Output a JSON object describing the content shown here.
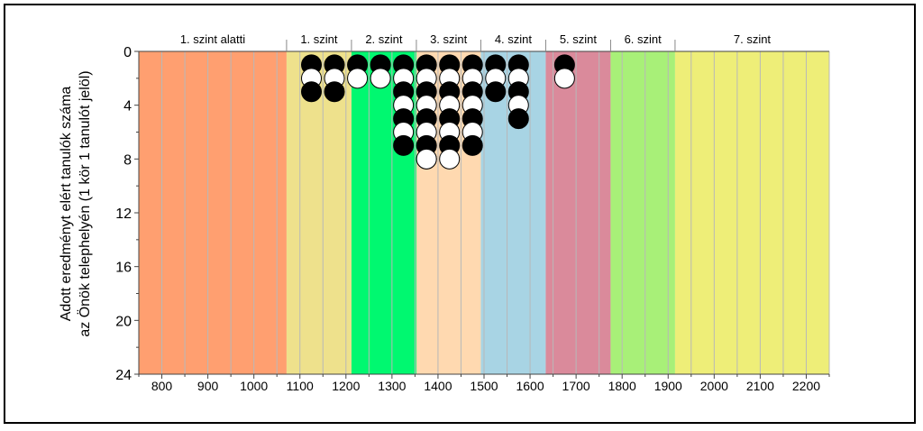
{
  "chart_data": {
    "type": "scatter",
    "ylabel": "Adott eredményt elért tanulók száma",
    "ylabel2": "az Önök telephelyén (1 kör 1 tanulót jelöl)",
    "x_ticks": [
      800,
      900,
      1000,
      1100,
      1200,
      1300,
      1400,
      1500,
      1600,
      1700,
      1800,
      1900,
      2000,
      2100,
      2200
    ],
    "y_ticks": [
      0,
      4,
      8,
      12,
      16,
      20,
      24
    ],
    "xlim": [
      750,
      2250
    ],
    "ylim": [
      0,
      24
    ],
    "y_inverted": true,
    "grid": true,
    "levels": [
      {
        "label": "1. szint alatti",
        "from": 750,
        "to": 1071,
        "color": "#FF9F70"
      },
      {
        "label": "1. szint",
        "from": 1071,
        "to": 1212,
        "color": "#EEE18C"
      },
      {
        "label": "2. szint",
        "from": 1212,
        "to": 1353,
        "color": "#00F870"
      },
      {
        "label": "3. szint",
        "from": 1353,
        "to": 1493,
        "color": "#FFD9B0"
      },
      {
        "label": "4. szint",
        "from": 1493,
        "to": 1634,
        "color": "#A8D4E4"
      },
      {
        "label": "5. szint",
        "from": 1634,
        "to": 1775,
        "color": "#DA8A9B"
      },
      {
        "label": "6. szint",
        "from": 1775,
        "to": 1915,
        "color": "#A8F078"
      },
      {
        "label": "7. szint",
        "from": 1915,
        "to": 2250,
        "color": "#EEEE78"
      }
    ],
    "series": [
      {
        "name": "",
        "color": "#000000",
        "x": [
          1125,
          1125,
          1175,
          1175,
          1225,
          1275,
          1325,
          1325,
          1325,
          1325,
          1375,
          1375,
          1375,
          1375,
          1375,
          1425,
          1425,
          1425,
          1425,
          1475,
          1475,
          1475,
          1475,
          1525,
          1525,
          1575,
          1575,
          1575,
          1675
        ],
        "y": [
          1,
          3,
          1,
          3,
          1,
          1,
          1,
          3,
          5,
          7,
          1,
          3,
          5,
          7,
          8,
          1,
          3,
          5,
          7,
          1,
          3,
          5,
          7,
          1,
          3,
          1,
          3,
          5,
          1
        ]
      },
      {
        "name": "",
        "color": "#FFFFFF",
        "x": [
          1125,
          1175,
          1225,
          1275,
          1325,
          1325,
          1325,
          1375,
          1375,
          1375,
          1375,
          1425,
          1425,
          1425,
          1425,
          1475,
          1475,
          1475,
          1525,
          1575,
          1575,
          1675
        ],
        "y": [
          2,
          2,
          2,
          2,
          2,
          4,
          6,
          2,
          4,
          6,
          8,
          2,
          4,
          6,
          8,
          2,
          4,
          6,
          2,
          2,
          4,
          2
        ]
      }
    ]
  }
}
